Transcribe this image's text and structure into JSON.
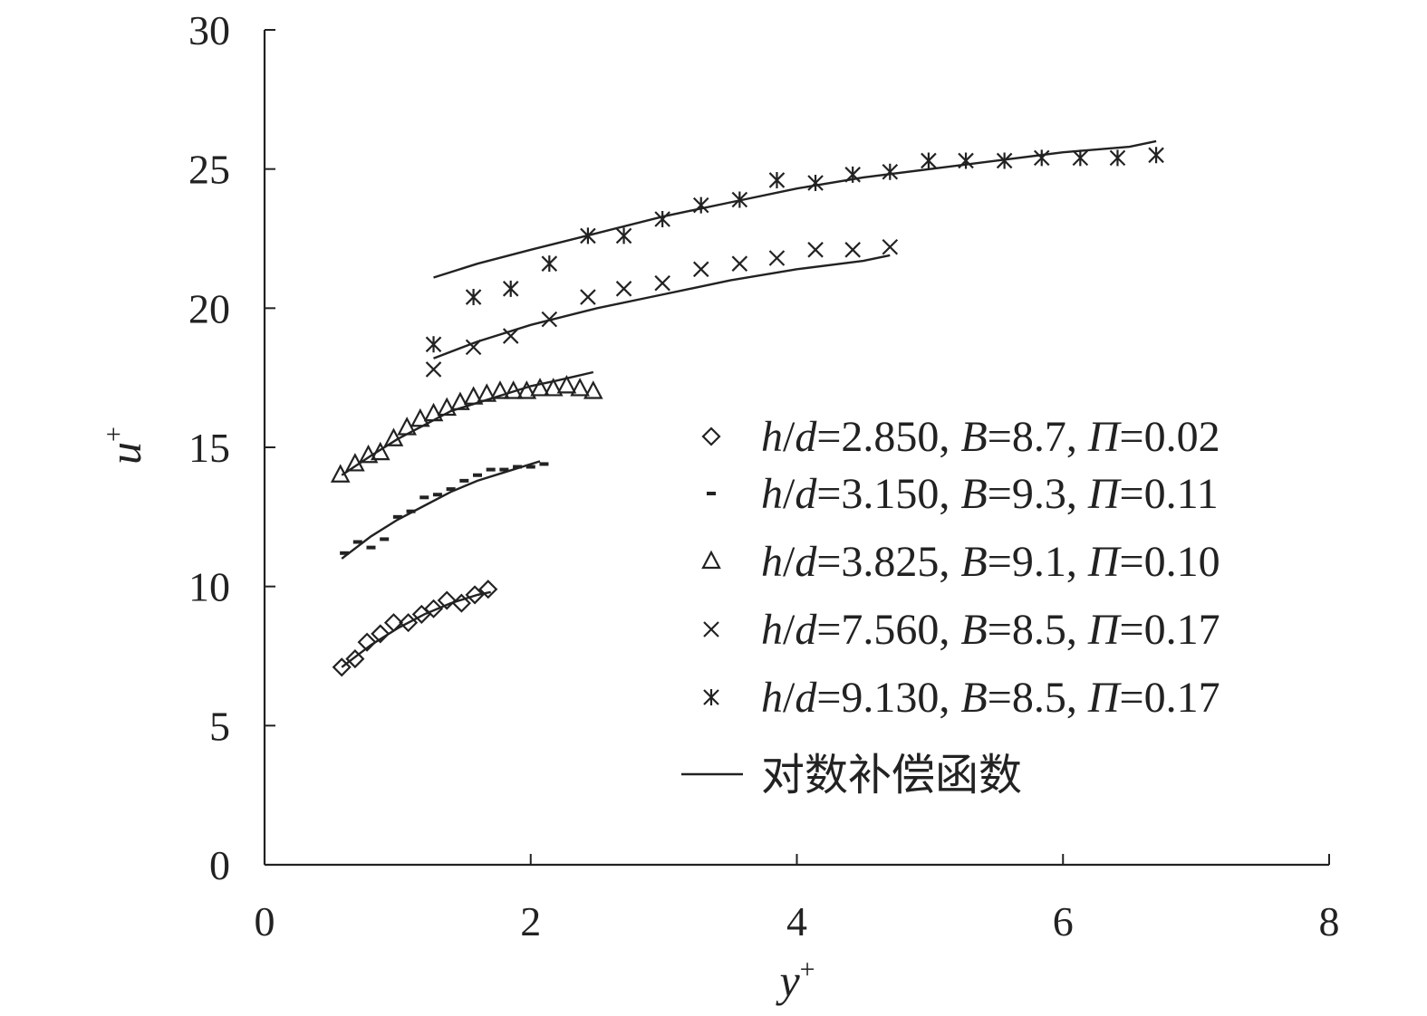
{
  "chart_data": {
    "type": "scatter",
    "xlabel": "y+",
    "ylabel": "u+",
    "xlim": [
      0,
      8
    ],
    "ylim": [
      0,
      30
    ],
    "xticks": [
      0,
      2,
      4,
      6,
      8
    ],
    "yticks": [
      0,
      5,
      10,
      15,
      20,
      25,
      30
    ],
    "legend_position": "center-right",
    "series": [
      {
        "name": "h/d=2.850, B=8.7, Π=0.02",
        "name_parts": {
          "hd": "2.850",
          "B": "8.7",
          "Pi": "0.02"
        },
        "marker": "diamond",
        "points": [
          [
            0.58,
            7.1
          ],
          [
            0.68,
            7.4
          ],
          [
            0.77,
            8.0
          ],
          [
            0.87,
            8.3
          ],
          [
            0.97,
            8.7
          ],
          [
            1.08,
            8.7
          ],
          [
            1.18,
            9.0
          ],
          [
            1.27,
            9.2
          ],
          [
            1.37,
            9.5
          ],
          [
            1.48,
            9.4
          ],
          [
            1.58,
            9.7
          ],
          [
            1.68,
            9.9
          ]
        ],
        "fit": [
          [
            0.58,
            7.1
          ],
          [
            0.8,
            7.9
          ],
          [
            1.0,
            8.5
          ],
          [
            1.2,
            9.0
          ],
          [
            1.4,
            9.4
          ],
          [
            1.6,
            9.7
          ],
          [
            1.7,
            9.8
          ]
        ]
      },
      {
        "name": "h/d=3.150, B=9.3, Π=0.11",
        "name_parts": {
          "hd": "3.150",
          "B": "9.3",
          "Pi": "0.11"
        },
        "marker": "dash",
        "points": [
          [
            0.6,
            11.2
          ],
          [
            0.7,
            11.6
          ],
          [
            0.8,
            11.4
          ],
          [
            0.9,
            11.7
          ],
          [
            1.0,
            12.5
          ],
          [
            1.1,
            12.7
          ],
          [
            1.2,
            13.2
          ],
          [
            1.3,
            13.3
          ],
          [
            1.4,
            13.5
          ],
          [
            1.5,
            13.8
          ],
          [
            1.6,
            14.0
          ],
          [
            1.7,
            14.2
          ],
          [
            1.8,
            14.2
          ],
          [
            1.9,
            14.3
          ],
          [
            2.0,
            14.3
          ],
          [
            2.1,
            14.4
          ]
        ],
        "fit": [
          [
            0.58,
            11.0
          ],
          [
            0.8,
            11.8
          ],
          [
            1.0,
            12.4
          ],
          [
            1.2,
            12.9
          ],
          [
            1.4,
            13.4
          ],
          [
            1.6,
            13.8
          ],
          [
            1.8,
            14.1
          ],
          [
            2.07,
            14.5
          ]
        ]
      },
      {
        "name": "h/d=3.825, B=9.1, Π=0.10",
        "name_parts": {
          "hd": "3.825",
          "B": "9.1",
          "Pi": "0.10"
        },
        "marker": "triangle",
        "points": [
          [
            0.57,
            14.0
          ],
          [
            0.68,
            14.4
          ],
          [
            0.78,
            14.7
          ],
          [
            0.87,
            14.8
          ],
          [
            0.97,
            15.3
          ],
          [
            1.07,
            15.7
          ],
          [
            1.17,
            16.0
          ],
          [
            1.27,
            16.2
          ],
          [
            1.37,
            16.4
          ],
          [
            1.47,
            16.6
          ],
          [
            1.57,
            16.8
          ],
          [
            1.67,
            16.9
          ],
          [
            1.77,
            17.0
          ],
          [
            1.87,
            17.0
          ],
          [
            1.97,
            17.0
          ],
          [
            2.07,
            17.1
          ],
          [
            2.17,
            17.1
          ],
          [
            2.27,
            17.2
          ],
          [
            2.37,
            17.1
          ],
          [
            2.47,
            17.0
          ]
        ],
        "fit": [
          [
            0.58,
            14.0
          ],
          [
            0.8,
            14.7
          ],
          [
            1.0,
            15.3
          ],
          [
            1.2,
            15.8
          ],
          [
            1.4,
            16.3
          ],
          [
            1.6,
            16.6
          ],
          [
            1.8,
            16.9
          ],
          [
            2.0,
            17.2
          ],
          [
            2.2,
            17.4
          ],
          [
            2.47,
            17.7
          ]
        ]
      },
      {
        "name": "h/d=7.560, B=8.5, Π=0.17",
        "name_parts": {
          "hd": "7.560",
          "B": "8.5",
          "Pi": "0.17"
        },
        "marker": "x",
        "points": [
          [
            1.27,
            17.8
          ],
          [
            1.57,
            18.6
          ],
          [
            1.85,
            19.0
          ],
          [
            2.14,
            19.6
          ],
          [
            2.43,
            20.4
          ],
          [
            2.7,
            20.7
          ],
          [
            2.99,
            20.9
          ],
          [
            3.28,
            21.4
          ],
          [
            3.57,
            21.6
          ],
          [
            3.85,
            21.8
          ],
          [
            4.14,
            22.1
          ],
          [
            4.42,
            22.1
          ],
          [
            4.7,
            22.2
          ]
        ],
        "fit": [
          [
            1.27,
            18.2
          ],
          [
            1.6,
            18.8
          ],
          [
            2.0,
            19.4
          ],
          [
            2.5,
            20.0
          ],
          [
            3.0,
            20.5
          ],
          [
            3.5,
            21.0
          ],
          [
            4.0,
            21.4
          ],
          [
            4.5,
            21.7
          ],
          [
            4.7,
            21.9
          ]
        ]
      },
      {
        "name": "h/d=9.130, B=8.5, Π=0.17",
        "name_parts": {
          "hd": "9.130",
          "B": "8.5",
          "Pi": "0.17"
        },
        "marker": "asterisk",
        "points": [
          [
            1.27,
            18.7
          ],
          [
            1.57,
            20.4
          ],
          [
            1.85,
            20.7
          ],
          [
            2.14,
            21.6
          ],
          [
            2.43,
            22.6
          ],
          [
            2.7,
            22.6
          ],
          [
            2.99,
            23.2
          ],
          [
            3.28,
            23.7
          ],
          [
            3.57,
            23.9
          ],
          [
            3.85,
            24.6
          ],
          [
            4.14,
            24.5
          ],
          [
            4.42,
            24.8
          ],
          [
            4.7,
            24.9
          ],
          [
            4.99,
            25.3
          ],
          [
            5.27,
            25.3
          ],
          [
            5.56,
            25.3
          ],
          [
            5.84,
            25.4
          ],
          [
            6.13,
            25.4
          ],
          [
            6.41,
            25.4
          ],
          [
            6.7,
            25.5
          ]
        ],
        "fit": [
          [
            1.27,
            21.1
          ],
          [
            1.6,
            21.6
          ],
          [
            2.0,
            22.1
          ],
          [
            2.5,
            22.7
          ],
          [
            3.0,
            23.3
          ],
          [
            3.5,
            23.8
          ],
          [
            4.0,
            24.3
          ],
          [
            4.5,
            24.7
          ],
          [
            5.0,
            25.0
          ],
          [
            5.5,
            25.3
          ],
          [
            6.0,
            25.6
          ],
          [
            6.5,
            25.8
          ],
          [
            6.7,
            26.0
          ]
        ]
      }
    ],
    "fit_legend_label": "对数补偿函数"
  }
}
